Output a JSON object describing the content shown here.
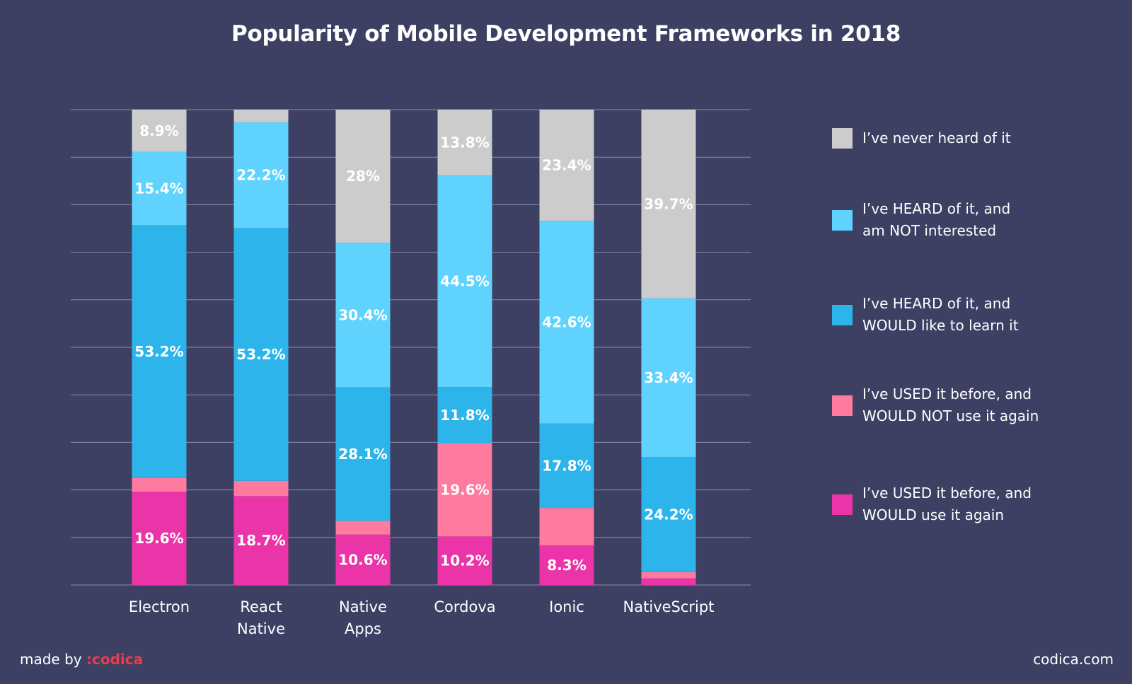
{
  "chart_data": {
    "type": "bar",
    "stacked": true,
    "title": "Popularity of Mobile Development Frameworks in 2018",
    "xlabel": "",
    "ylabel": "",
    "ylim": [
      0,
      100
    ],
    "grid": true,
    "legend_position": "right",
    "categories": [
      "Electron",
      "React Native",
      "Native Apps",
      "Cordova",
      "Ionic",
      "NativeScript"
    ],
    "category_lines": [
      [
        "Electron"
      ],
      [
        "React",
        "Native"
      ],
      [
        "Native",
        "Apps"
      ],
      [
        "Cordova"
      ],
      [
        "Ionic"
      ],
      [
        "NativeScript"
      ]
    ],
    "series": [
      {
        "name": "I've USED it before, and WOULD use it again",
        "color": "#ea34a8",
        "values": [
          19.6,
          18.7,
          10.6,
          10.2,
          8.3,
          1.4
        ],
        "labels": [
          "19.6%",
          "18.7%",
          "10.6%",
          "10.2%",
          "8.3%",
          ""
        ]
      },
      {
        "name": "I've USED it before, and WOULD NOT use it again",
        "color": "#fe7a9e",
        "values": [
          2.9,
          3.2,
          2.9,
          19.6,
          7.9,
          1.3
        ],
        "labels": [
          "",
          "",
          "",
          "19.6%",
          "",
          ""
        ]
      },
      {
        "name": "I've HEARD of it, and WOULD like to learn it",
        "color": "#2db5eb",
        "values": [
          53.2,
          53.2,
          28.1,
          11.8,
          17.8,
          24.2
        ],
        "labels": [
          "53.2%",
          "53.2%",
          "28.1%",
          "11.8%",
          "17.8%",
          "24.2%"
        ]
      },
      {
        "name": "I've HEARD of it, and am NOT interested",
        "color": "#5fd3fe",
        "values": [
          15.4,
          22.2,
          30.4,
          44.5,
          42.6,
          33.4
        ],
        "labels": [
          "15.4%",
          "22.2%",
          "30.4%",
          "44.5%",
          "42.6%",
          "33.4%"
        ]
      },
      {
        "name": "I've never heard of it",
        "color": "#cccccc",
        "values": [
          8.9,
          2.7,
          28.0,
          13.8,
          23.4,
          39.7
        ],
        "labels": [
          "8.9%",
          "",
          "28%",
          "13.8%",
          "23.4%",
          "39.7%"
        ]
      }
    ]
  },
  "legend": [
    {
      "color": "#cccccc",
      "lines": [
        "I’ve never heard of it"
      ]
    },
    {
      "color": "#5fd3fe",
      "lines": [
        "I’ve HEARD of it, and",
        "am NOT interested"
      ]
    },
    {
      "color": "#2db5eb",
      "lines": [
        "I’ve HEARD of it, and",
        "WOULD like to learn it"
      ]
    },
    {
      "color": "#fe7a9e",
      "lines": [
        "I’ve USED it before, and",
        "WOULD NOT use it again"
      ]
    },
    {
      "color": "#ea34a8",
      "lines": [
        "I’ve USED it before, and",
        "WOULD use it again"
      ]
    }
  ],
  "footer": {
    "made_by": "made by ",
    "brand": ":codica",
    "website": "codica.com"
  },
  "colors": {
    "background": "#3d4063",
    "gridline": "#8a8ca6",
    "brand": "#ee3a4b"
  }
}
